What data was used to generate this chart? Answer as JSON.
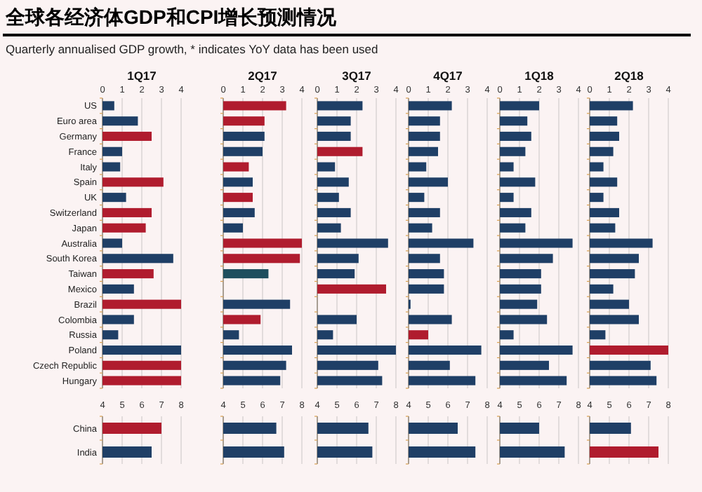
{
  "chart_data": [
    {
      "type": "other",
      "title": "全球各经济体GDP和CPI增长预测情况",
      "subtitle": "Quarterly annualised GDP growth, * indicates YoY data has been used"
    },
    {
      "type": "bar",
      "orientation": "horizontal",
      "title": "1Q17",
      "grid": "x",
      "xlim": [
        0,
        4
      ],
      "xticks": [
        0,
        1,
        2,
        3,
        4
      ],
      "categories": [
        "US",
        "Euro area",
        "Germany",
        "France",
        "Italy",
        "Spain",
        "UK",
        "Switzerland",
        "Japan",
        "Australia",
        "South Korea",
        "Taiwan",
        "Mexico",
        "Brazil",
        "Colombia",
        "Russia",
        "Poland",
        "Czech Republic",
        "Hungary"
      ],
      "values": [
        0.6,
        1.8,
        2.5,
        1.0,
        0.9,
        3.1,
        1.2,
        2.5,
        2.2,
        1.0,
        3.6,
        2.6,
        1.6,
        4.0,
        1.6,
        0.8,
        4.0,
        4.0,
        4.0
      ],
      "colors": [
        "#1f3f66",
        "#1f3f66",
        "#b01c2e",
        "#1f3f66",
        "#1f3f66",
        "#b01c2e",
        "#1f3f66",
        "#b01c2e",
        "#b01c2e",
        "#1f3f66",
        "#1f3f66",
        "#b01c2e",
        "#1f3f66",
        "#b01c2e",
        "#1f3f66",
        "#1f3f66",
        "#1f3f66",
        "#b01c2e",
        "#b01c2e"
      ]
    },
    {
      "type": "bar",
      "orientation": "horizontal",
      "grid": "x",
      "xlim": [
        4,
        8
      ],
      "xticks": [
        4,
        5,
        6,
        7,
        8
      ],
      "categories": [
        "China",
        "India"
      ],
      "values": [
        7.0,
        6.5
      ],
      "colors": [
        "#b01c2e",
        "#1f3f66"
      ]
    },
    {
      "type": "bar",
      "orientation": "horizontal",
      "title": "2Q17",
      "grid": "x",
      "tick_labels": "x",
      "xlim": [
        0,
        4
      ],
      "xticks": [
        0,
        1,
        2,
        3,
        4
      ],
      "categories": [
        null,
        null,
        null,
        null,
        null,
        null,
        null,
        null,
        null,
        null,
        null,
        null,
        null,
        null,
        null,
        null,
        null,
        null,
        null
      ],
      "values": [
        3.2,
        2.1,
        2.1,
        2.0,
        1.3,
        1.5,
        1.5,
        1.6,
        1.0,
        4.0,
        3.9,
        2.3,
        null,
        3.4,
        1.9,
        0.8,
        3.5,
        3.2,
        2.9
      ],
      "colors": [
        "#b01c2e",
        "#b01c2e",
        "#1f3f66",
        "#1f3f66",
        "#b01c2e",
        "#1f3f66",
        "#b01c2e",
        "#1f3f66",
        "#1f3f66",
        "#b01c2e",
        "#b01c2e",
        "#1f4f5e",
        null,
        "#1f3f66",
        "#b01c2e",
        "#1f3f66",
        "#1f3f66",
        "#1f3f66",
        "#1f3f66"
      ]
    },
    {
      "type": "bar",
      "orientation": "horizontal",
      "grid": "x",
      "tick_labels": "x",
      "xlim": [
        4,
        8
      ],
      "xticks": [
        4,
        5,
        6,
        7,
        8
      ],
      "categories": [
        null,
        null
      ],
      "values": [
        6.7,
        7.1
      ],
      "colors": [
        "#1f3f66",
        "#1f3f66"
      ]
    },
    {
      "type": "bar",
      "orientation": "horizontal",
      "title": "3Q17",
      "grid": "x",
      "tick_labels": "x",
      "xlim": [
        0,
        4
      ],
      "xticks": [
        0,
        1,
        2,
        3,
        4
      ],
      "categories": [
        null,
        null,
        null,
        null,
        null,
        null,
        null,
        null,
        null,
        null,
        null,
        null,
        null,
        null,
        null,
        null,
        null,
        null,
        null
      ],
      "values": [
        2.3,
        1.7,
        1.7,
        2.3,
        0.9,
        1.6,
        1.1,
        1.7,
        1.2,
        3.6,
        2.1,
        1.9,
        3.5,
        null,
        2.0,
        0.8,
        4.0,
        3.1,
        3.3
      ],
      "colors": [
        "#1f3f66",
        "#1f3f66",
        "#1f3f66",
        "#b01c2e",
        "#1f3f66",
        "#1f3f66",
        "#1f3f66",
        "#1f3f66",
        "#1f3f66",
        "#1f3f66",
        "#1f3f66",
        "#1f3f66",
        "#b01c2e",
        null,
        "#1f3f66",
        "#1f3f66",
        "#1f3f66",
        "#1f3f66",
        "#1f3f66"
      ]
    },
    {
      "type": "bar",
      "orientation": "horizontal",
      "grid": "x",
      "tick_labels": "x",
      "xlim": [
        4,
        8
      ],
      "xticks": [
        4,
        5,
        6,
        7,
        8
      ],
      "categories": [
        null,
        null
      ],
      "values": [
        6.6,
        6.8
      ],
      "colors": [
        "#1f3f66",
        "#1f3f66"
      ]
    },
    {
      "type": "bar",
      "orientation": "horizontal",
      "title": "4Q17",
      "grid": "x",
      "tick_labels": "x",
      "xlim": [
        0,
        4
      ],
      "xticks": [
        0,
        1,
        2,
        3,
        4
      ],
      "categories": [
        null,
        null,
        null,
        null,
        null,
        null,
        null,
        null,
        null,
        null,
        null,
        null,
        null,
        null,
        null,
        null,
        null,
        null,
        null
      ],
      "values": [
        2.2,
        1.6,
        1.6,
        1.5,
        0.9,
        2.0,
        0.8,
        1.6,
        1.2,
        3.3,
        1.6,
        1.8,
        1.8,
        0.1,
        2.2,
        1.0,
        3.7,
        2.1,
        3.4
      ],
      "colors": [
        "#1f3f66",
        "#1f3f66",
        "#1f3f66",
        "#1f3f66",
        "#1f3f66",
        "#1f3f66",
        "#1f3f66",
        "#1f3f66",
        "#1f3f66",
        "#1f3f66",
        "#1f3f66",
        "#1f3f66",
        "#1f3f66",
        "#1f3f66",
        "#1f3f66",
        "#b01c2e",
        "#1f3f66",
        "#1f3f66",
        "#1f3f66"
      ]
    },
    {
      "type": "bar",
      "orientation": "horizontal",
      "grid": "x",
      "tick_labels": "x",
      "xlim": [
        4,
        8
      ],
      "xticks": [
        4,
        5,
        6,
        7,
        8
      ],
      "categories": [
        null,
        null
      ],
      "values": [
        6.5,
        7.4
      ],
      "colors": [
        "#1f3f66",
        "#1f3f66"
      ]
    },
    {
      "type": "bar",
      "orientation": "horizontal",
      "title": "1Q18",
      "grid": "x",
      "tick_labels": "x",
      "xlim": [
        0,
        4
      ],
      "xticks": [
        0,
        1,
        2,
        3,
        4
      ],
      "categories": [
        null,
        null,
        null,
        null,
        null,
        null,
        null,
        null,
        null,
        null,
        null,
        null,
        null,
        null,
        null,
        null,
        null,
        null,
        null
      ],
      "values": [
        2.0,
        1.4,
        1.6,
        1.3,
        0.7,
        1.8,
        0.7,
        1.6,
        1.3,
        3.7,
        2.7,
        2.1,
        2.1,
        1.9,
        2.4,
        0.7,
        3.7,
        2.5,
        3.4
      ],
      "colors": [
        "#1f3f66",
        "#1f3f66",
        "#1f3f66",
        "#1f3f66",
        "#1f3f66",
        "#1f3f66",
        "#1f3f66",
        "#1f3f66",
        "#1f3f66",
        "#1f3f66",
        "#1f3f66",
        "#1f3f66",
        "#1f3f66",
        "#1f3f66",
        "#1f3f66",
        "#1f3f66",
        "#1f3f66",
        "#1f3f66",
        "#1f3f66"
      ]
    },
    {
      "type": "bar",
      "orientation": "horizontal",
      "grid": "x",
      "tick_labels": "x",
      "xlim": [
        4,
        8
      ],
      "xticks": [
        4,
        5,
        6,
        7,
        8
      ],
      "categories": [
        null,
        null
      ],
      "values": [
        6.0,
        7.3
      ],
      "colors": [
        "#1f3f66",
        "#1f3f66"
      ]
    },
    {
      "type": "bar",
      "orientation": "horizontal",
      "title": "2Q18",
      "grid": "x",
      "tick_labels": "x",
      "xlim": [
        0,
        4
      ],
      "xticks": [
        0,
        1,
        2,
        3,
        4
      ],
      "categories": [
        null,
        null,
        null,
        null,
        null,
        null,
        null,
        null,
        null,
        null,
        null,
        null,
        null,
        null,
        null,
        null,
        null,
        null,
        null
      ],
      "values": [
        2.2,
        1.4,
        1.5,
        1.2,
        0.7,
        1.4,
        0.7,
        1.5,
        1.3,
        3.2,
        2.5,
        2.3,
        1.2,
        2.0,
        2.5,
        0.8,
        4.0,
        3.1,
        3.4
      ],
      "colors": [
        "#1f3f66",
        "#1f3f66",
        "#1f3f66",
        "#1f3f66",
        "#1f3f66",
        "#1f3f66",
        "#1f3f66",
        "#1f3f66",
        "#1f3f66",
        "#1f3f66",
        "#1f3f66",
        "#1f3f66",
        "#1f3f66",
        "#1f3f66",
        "#1f3f66",
        "#1f3f66",
        "#b01c2e",
        "#1f3f66",
        "#1f3f66"
      ]
    },
    {
      "type": "bar",
      "orientation": "horizontal",
      "grid": "x",
      "tick_labels": "x",
      "xlim": [
        4,
        8
      ],
      "xticks": [
        4,
        5,
        6,
        7,
        8
      ],
      "categories": [
        null,
        null
      ],
      "values": [
        6.1,
        7.5
      ],
      "colors": [
        "#1f3f66",
        "#b01c2e"
      ]
    }
  ]
}
